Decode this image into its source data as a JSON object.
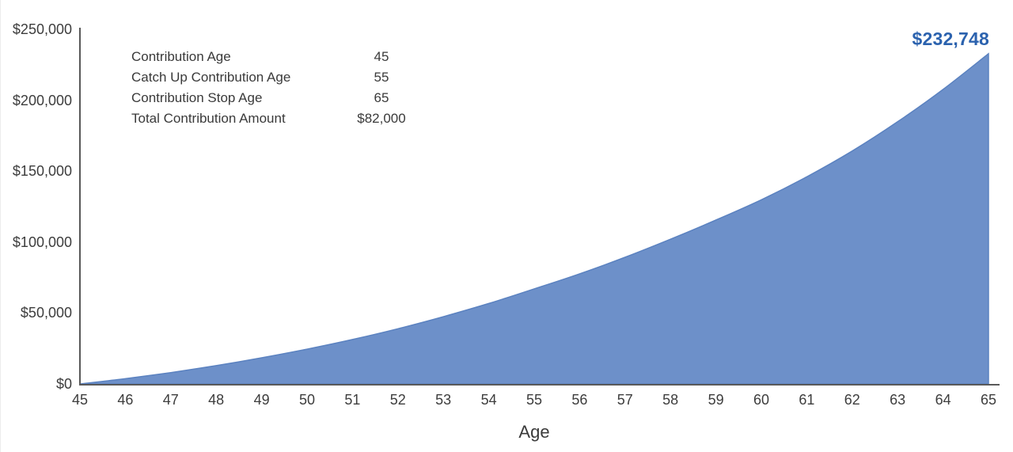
{
  "chart_data": {
    "type": "area",
    "title": "",
    "xlabel": "Age",
    "ylabel": "",
    "x": [
      45,
      46,
      47,
      48,
      49,
      50,
      51,
      52,
      53,
      54,
      55,
      56,
      57,
      58,
      59,
      60,
      61,
      62,
      63,
      64,
      65
    ],
    "values": [
      0,
      3700,
      8000,
      12900,
      18400,
      24500,
      31300,
      38900,
      47400,
      56700,
      67000,
      77600,
      89300,
      102000,
      115500,
      129800,
      146000,
      164200,
      184800,
      207600,
      232748
    ],
    "ylim": [
      0,
      250000
    ],
    "ytick_step": 50000,
    "yticks": [
      0,
      50000,
      100000,
      150000,
      200000,
      250000
    ],
    "ytick_prefix": "$",
    "grid": false,
    "legend": "none",
    "area_color": "#6d90c9",
    "line_color": "#5b82c0",
    "axis_color": "#595959",
    "tick_label_color": "#3d3d3d",
    "end_label": {
      "text": "$232,748",
      "color": "#2b62ae"
    }
  },
  "summary": {
    "rows": [
      {
        "label": "Contribution Age",
        "value": "45"
      },
      {
        "label": "Catch Up Contribution Age",
        "value": "55"
      },
      {
        "label": "Contribution Stop Age",
        "value": "65"
      },
      {
        "label": "Total Contribution Amount",
        "value": "$82,000"
      }
    ]
  }
}
